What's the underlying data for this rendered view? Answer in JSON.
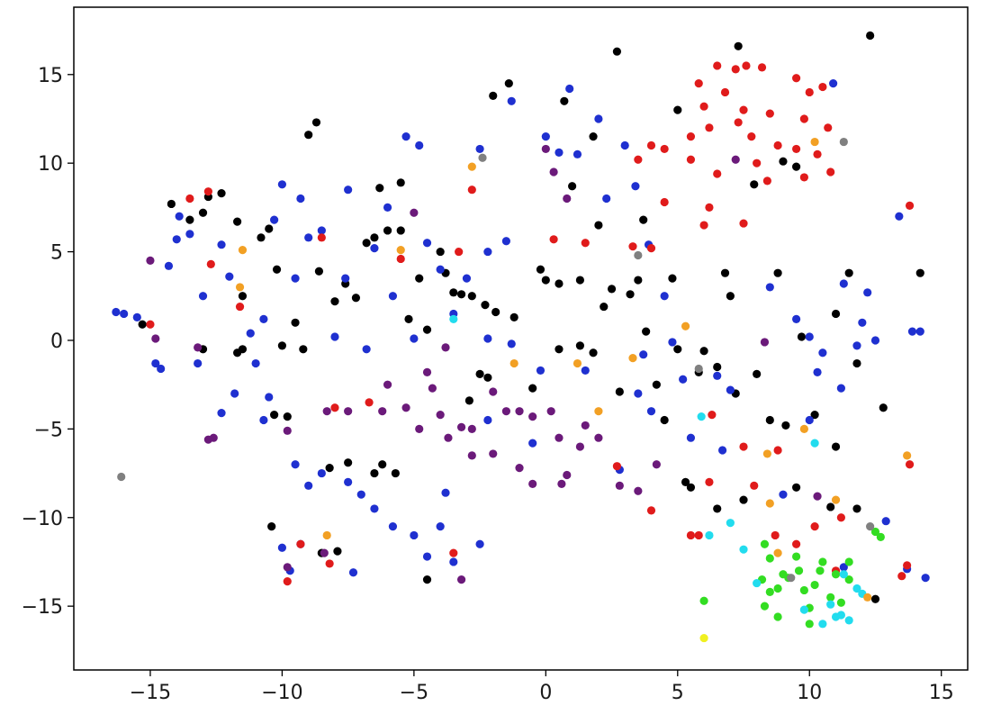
{
  "chart_data": {
    "type": "scatter",
    "xlim": [
      -17.9,
      16.0
    ],
    "ylim": [
      -18.6,
      18.8
    ],
    "xticks": [
      {
        "value": -15,
        "label": "−15"
      },
      {
        "value": -10,
        "label": "−10"
      },
      {
        "value": -5,
        "label": "−5"
      },
      0,
      5,
      10,
      15
    ],
    "yticks": [
      {
        "value": -15,
        "label": "−15"
      },
      {
        "value": -10,
        "label": "−10"
      },
      {
        "value": -5,
        "label": "−5"
      },
      0,
      5,
      10,
      15
    ],
    "grid": false,
    "series": [
      {
        "color": "#000000",
        "x": [
          -15.3,
          -14.2,
          -13.5,
          -13.0,
          -12.8,
          -12.3,
          -11.7,
          -11.5,
          -11.7,
          -11.5,
          -10.8,
          -10.5,
          -10.2,
          -10.0,
          -9.8,
          -10.3,
          -9.5,
          -9.2,
          -9.0,
          -8.7,
          -8.6,
          -8.0,
          -7.6,
          -7.2,
          -6.8,
          -6.5,
          -6.3,
          -6.0,
          -5.5,
          -5.5,
          -5.2,
          -4.8,
          -4.5,
          -4.0,
          -3.8,
          -3.5,
          -3.2,
          -2.8,
          -2.5,
          -2.3,
          -1.9,
          -1.4,
          -2.0,
          -1.2,
          -0.5,
          -0.2,
          0.0,
          0.5,
          0.5,
          1.0,
          1.3,
          1.3,
          1.8,
          2.2,
          2.5,
          2.7,
          2.8,
          3.2,
          3.5,
          3.7,
          3.8,
          4.2,
          4.5,
          4.8,
          5.0,
          5.5,
          5.8,
          6.0,
          6.5,
          6.8,
          7.0,
          7.2,
          7.3,
          7.9,
          8.0,
          8.5,
          8.8,
          9.1,
          9.5,
          9.7,
          10.2,
          11.0,
          11.5,
          11.8,
          12.3,
          12.5,
          14.2,
          -6.5,
          -7.5,
          -8.2,
          -6.2,
          -5.7,
          -10.4,
          -8.5,
          -7.9,
          -2.9,
          7.5,
          6.5,
          5.3,
          10.8,
          11.8,
          -13.0,
          -4.5,
          -2.2,
          0.7,
          1.8,
          2.0,
          5.0,
          9.0,
          9.5,
          11.0,
          12.8
        ],
        "values": [
          0.9,
          7.7,
          6.8,
          7.2,
          8.1,
          8.3,
          6.7,
          -0.5,
          -0.7,
          2.5,
          5.8,
          6.3,
          4.0,
          -0.3,
          -4.3,
          -4.2,
          1.0,
          -0.5,
          11.6,
          12.3,
          3.9,
          2.2,
          3.2,
          2.4,
          5.5,
          5.8,
          8.6,
          6.2,
          8.9,
          6.2,
          1.2,
          3.5,
          0.6,
          5.0,
          3.8,
          2.7,
          2.6,
          2.5,
          -1.9,
          2.0,
          1.6,
          14.5,
          13.8,
          1.3,
          -2.7,
          4.0,
          3.4,
          -0.5,
          3.2,
          8.7,
          3.4,
          -0.3,
          -0.7,
          1.9,
          2.9,
          16.3,
          -2.9,
          2.6,
          3.4,
          6.8,
          0.5,
          -2.5,
          -4.5,
          3.5,
          -0.5,
          -8.3,
          -1.8,
          -0.6,
          -1.5,
          3.8,
          2.5,
          -3.0,
          16.6,
          8.8,
          -1.9,
          -4.5,
          3.8,
          -4.8,
          -8.3,
          0.2,
          -4.2,
          -6.0,
          3.8,
          -1.3,
          17.2,
          -14.6,
          3.8,
          -7.5,
          -6.9,
          -7.2,
          -7.0,
          -7.5,
          -10.5,
          -12.0,
          -11.9,
          -3.4,
          -9.0,
          -9.5,
          -8.0,
          -9.4,
          -9.5,
          -0.5,
          -13.5,
          -2.1,
          13.5,
          11.5,
          6.5,
          13.0,
          10.1,
          9.8,
          1.5,
          -3.8
        ]
      },
      {
        "color": "#1f30d0",
        "x": [
          -16.3,
          -16.0,
          -15.5,
          -14.8,
          -14.6,
          -14.3,
          -14.0,
          -13.9,
          -13.5,
          -13.0,
          -12.3,
          -12.0,
          -11.2,
          -11.0,
          -10.7,
          -10.5,
          -10.7,
          -10.3,
          -10.0,
          -9.5,
          -9.3,
          -9.0,
          -8.5,
          -8.0,
          -7.5,
          -7.6,
          -6.5,
          -6.0,
          -5.8,
          -5.3,
          -4.8,
          -4.5,
          -4.0,
          -3.5,
          -3.0,
          -2.5,
          -2.2,
          -1.5,
          -1.3,
          0.0,
          0.5,
          0.9,
          1.2,
          2.0,
          2.3,
          3.0,
          3.4,
          3.9,
          4.5,
          3.7,
          4.8,
          3.5,
          4.0,
          5.5,
          5.2,
          6.5,
          7.0,
          8.5,
          9.5,
          10.0,
          10.5,
          11.2,
          11.8,
          12.0,
          12.2,
          12.5,
          13.4,
          14.2,
          10.9,
          10.0,
          9.0,
          -9.5,
          -9.0,
          -8.5,
          -7.5,
          -7.0,
          -6.5,
          -5.8,
          -5.0,
          -4.5,
          -3.8,
          -4.0,
          -3.5,
          -2.5,
          -10.0,
          -9.3,
          -9.7,
          -7.3,
          -1.3,
          -0.2,
          1.5,
          -2.2,
          -13.2,
          -11.8,
          -5.0,
          -6.8,
          14.4,
          13.7,
          11.3,
          12.9,
          13.9,
          11.3,
          10.3,
          2.8,
          6.7,
          -2.2,
          -0.5,
          -12.3
        ],
        "values": [
          1.6,
          1.5,
          1.3,
          -1.3,
          -1.6,
          4.2,
          5.7,
          7.0,
          6.0,
          2.5,
          5.4,
          3.6,
          0.4,
          -1.3,
          1.2,
          -3.2,
          -4.5,
          6.8,
          8.8,
          3.5,
          8.0,
          5.8,
          6.2,
          0.2,
          8.5,
          3.5,
          5.2,
          7.5,
          2.5,
          11.5,
          11.0,
          5.5,
          4.0,
          1.5,
          3.5,
          10.8,
          5.0,
          5.6,
          13.5,
          11.5,
          10.6,
          14.2,
          10.5,
          12.5,
          8.0,
          11.0,
          8.7,
          5.4,
          2.5,
          -0.8,
          -0.1,
          -3.0,
          -4.0,
          -5.5,
          -2.2,
          -2.0,
          -2.8,
          3.0,
          1.2,
          0.2,
          -0.7,
          -2.7,
          -0.3,
          1.0,
          2.7,
          0.0,
          7.0,
          0.5,
          14.5,
          -4.5,
          -8.7,
          -7.0,
          -8.2,
          -7.5,
          -8.0,
          -8.7,
          -9.5,
          -10.5,
          -11.0,
          -12.2,
          -8.6,
          -10.5,
          -12.5,
          -11.5,
          -11.7,
          -11.5,
          -13.0,
          -13.1,
          -0.2,
          -1.7,
          -1.7,
          0.1,
          -1.3,
          -3.0,
          0.1,
          -0.5,
          -13.4,
          -12.9,
          -12.8,
          -10.2,
          0.5,
          3.2,
          -1.8,
          -7.3,
          -6.2,
          -4.5,
          -5.8,
          -4.1
        ]
      },
      {
        "color": "#e01b1b",
        "x": [
          5.8,
          6.5,
          7.2,
          7.6,
          8.2,
          9.5,
          10.5,
          6.0,
          7.5,
          8.5,
          9.8,
          10.7,
          6.2,
          7.8,
          8.8,
          9.5,
          10.3,
          10.8,
          9.8,
          8.4,
          6.5,
          5.5,
          4.0,
          7.3,
          8.0,
          10.0,
          6.8,
          5.5,
          4.5,
          6.0,
          6.2,
          7.5,
          0.3,
          1.5,
          3.3,
          4.0,
          -3.3,
          -2.8,
          -8.5,
          -12.7,
          -13.5,
          -12.8,
          -11.6,
          -15,
          -5.5,
          -8,
          -6.7,
          -3.5,
          -9.8,
          -8.2,
          -9.3,
          6.3,
          7.5,
          8.8,
          4,
          5.5,
          5.8,
          2.7,
          8.7,
          9.5,
          10.2,
          11.2,
          11.0,
          13.8,
          13.5,
          13.7,
          13.8,
          4.5,
          3.5,
          6.2,
          7.9
        ],
        "values": [
          14.5,
          15.5,
          15.3,
          15.5,
          15.4,
          14.8,
          14.3,
          13.2,
          13.0,
          12.8,
          12.5,
          12.0,
          12.0,
          11.5,
          11.0,
          10.8,
          10.5,
          9.5,
          9.2,
          9.0,
          9.4,
          10.2,
          11.0,
          12.3,
          10.0,
          14.0,
          14.0,
          11.5,
          10.8,
          6.5,
          7.5,
          6.6,
          5.7,
          5.5,
          5.3,
          5.2,
          5.0,
          8.5,
          5.8,
          4.3,
          8.0,
          8.4,
          1.9,
          0.9,
          4.6,
          -3.8,
          -3.5,
          -12,
          -13.6,
          -12.6,
          -11.5,
          -4.2,
          -6.0,
          -6.2,
          -9.6,
          -11.0,
          -11,
          -7.1,
          -11.0,
          -11.5,
          -10.5,
          -10.0,
          -13,
          -7.0,
          -13.3,
          -12.7,
          7.6,
          7.8,
          10.2,
          -8.0,
          -8.2
        ]
      },
      {
        "color": "#6b1a7a",
        "x": [
          -15,
          -14.8,
          -13.2,
          -12.6,
          -12.8,
          -9.8,
          -8.3,
          -7.5,
          -6.0,
          -6.2,
          -5.3,
          -4.8,
          -4.3,
          -4.0,
          -4.5,
          -3.7,
          -3.2,
          -2.8,
          -2.0,
          -1.5,
          -1.0,
          -0.5,
          0.2,
          -2.8,
          -2.0,
          -1.0,
          0.5,
          0.8,
          1.3,
          1.5,
          2.0,
          2.8,
          3.5,
          4.2,
          0,
          0.3,
          0.8,
          -5.0,
          7.2,
          10.3,
          -9.8,
          -3.2,
          8.3,
          -3.8,
          -0.5,
          0.6,
          -8.4
        ],
        "values": [
          4.5,
          0.1,
          -0.4,
          -5.5,
          -5.6,
          -5.1,
          -4.0,
          -4.0,
          -2.5,
          -4.0,
          -3.8,
          -5.0,
          -2.7,
          -4.2,
          -1.8,
          -5.5,
          -4.9,
          -5.0,
          -2.9,
          -4.0,
          -4.0,
          -4.3,
          -4.0,
          -6.5,
          -6.4,
          -7.2,
          -5.5,
          -7.6,
          -6.0,
          -4.8,
          -5.5,
          -8.2,
          -8.5,
          -7.0,
          10.8,
          9.5,
          8.0,
          7.2,
          10.2,
          -8.8,
          -12.8,
          -13.5,
          -0.1,
          -0.4,
          -8.1,
          -8.1,
          -12.0
        ]
      },
      {
        "color": "#33dd22",
        "x": [
          6,
          8.3,
          8.5,
          8.2,
          8.5,
          8.8,
          8.3,
          9.0,
          9.5,
          9.8,
          10.0,
          10.2,
          10.5,
          10.8,
          11.0,
          11.5,
          12.5,
          12.7,
          9.2,
          10.0,
          8.8,
          10.4,
          11.5,
          9.6,
          11.2
        ],
        "values": [
          -14.7,
          -11.5,
          -12.3,
          -13.5,
          -14.2,
          -14.0,
          -15.0,
          -13.2,
          -12.2,
          -14.1,
          -15.1,
          -13.8,
          -12.5,
          -14.5,
          -13.2,
          -13.5,
          -10.8,
          -11.1,
          -13.4,
          -16.0,
          -15.6,
          -13.0,
          -12.5,
          -13.0,
          -14.8
        ]
      },
      {
        "color": "#22dcee",
        "x": [
          6.2,
          7.0,
          7.5,
          5.9,
          10.2,
          10.8,
          11.2,
          11.5,
          11.0,
          11.8,
          12.0,
          9.8,
          10.5,
          -3.5,
          11.3,
          8.0
        ],
        "values": [
          -11.0,
          -10.3,
          -11.8,
          -4.3,
          -5.8,
          -14.9,
          -15.5,
          -15.8,
          -15.6,
          -14.0,
          -14.3,
          -15.2,
          -16.0,
          1.2,
          -13.2,
          -13.7
        ]
      },
      {
        "color": "#f2a024",
        "x": [
          -5.5,
          -11.5,
          -11.6,
          -8.3,
          -1.2,
          1.2,
          -2.8,
          3.3,
          5.3,
          2.0,
          8.4,
          8.5,
          9.8,
          11,
          12.2,
          13.7,
          8.8,
          10.2
        ],
        "values": [
          5.1,
          5.1,
          3.0,
          -11.0,
          -1.3,
          -1.3,
          9.8,
          -1.0,
          0.8,
          -4.0,
          -6.4,
          -9.2,
          -5.0,
          -9.0,
          -14.5,
          -6.5,
          -12,
          11.2
        ]
      },
      {
        "color": "#808080",
        "x": [
          -16.1,
          -2.4,
          5.8,
          11.3,
          12.3,
          3.5,
          9.3
        ],
        "values": [
          -7.7,
          10.3,
          -1.6,
          11.2,
          -10.5,
          4.8,
          -13.4
        ]
      },
      {
        "color": "#f0f020",
        "x": [
          6.0
        ],
        "values": [
          -16.8
        ]
      }
    ]
  }
}
